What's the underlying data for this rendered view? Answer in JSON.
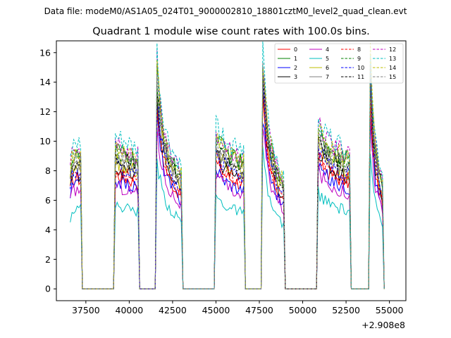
{
  "suptitle": "Data file: modeM0/AS1A05_024T01_9000002810_18801cztM0_level2_quad_clean.evt",
  "chart_data": {
    "type": "line",
    "title": "Quadrant 1 module wise count rates with 100.0s bins.",
    "xlabel": "",
    "ylabel": "",
    "x_offset_label": "+2.908e8",
    "xlim": [
      35800,
      55950
    ],
    "ylim": [
      -0.8,
      16.8
    ],
    "xticks": [
      37500,
      40000,
      42500,
      45000,
      47500,
      50000,
      52500,
      55000
    ],
    "xtick_labels": [
      "37500",
      "40000",
      "42500",
      "45000",
      "47500",
      "50000",
      "52500",
      "55000"
    ],
    "yticks": [
      0,
      2,
      4,
      6,
      8,
      10,
      12,
      14,
      16
    ],
    "ytick_labels": [
      "0",
      "2",
      "4",
      "6",
      "8",
      "10",
      "12",
      "14",
      "16"
    ],
    "bin_seconds": 100,
    "grid": false,
    "legend_position": "top-right",
    "legend_columns": 4,
    "segments": [
      {
        "start": 36600,
        "end": 37200,
        "rise": 0.85,
        "decay": 0.05
      },
      {
        "start": 39200,
        "end": 40500,
        "rise": 1.0,
        "decay": 0.08
      },
      {
        "start": 41600,
        "end": 43000,
        "rise": 1.55,
        "decay": 0.2
      },
      {
        "start": 45000,
        "end": 46600,
        "rise": 1.1,
        "decay": 0.1
      },
      {
        "start": 47700,
        "end": 48900,
        "rise": 1.6,
        "decay": 0.25
      },
      {
        "start": 50900,
        "end": 52700,
        "rise": 1.15,
        "decay": 0.08
      },
      {
        "start": 53900,
        "end": 54600,
        "rise": 1.65,
        "decay": 0.25
      }
    ],
    "series": [
      {
        "name": "0",
        "color": "#ff0000",
        "dash": "solid",
        "level": 7.8
      },
      {
        "name": "1",
        "color": "#008000",
        "dash": "solid",
        "level": 9.4
      },
      {
        "name": "2",
        "color": "#0000ff",
        "dash": "solid",
        "level": 7.4
      },
      {
        "name": "3",
        "color": "#000000",
        "dash": "solid",
        "level": 8.2
      },
      {
        "name": "4",
        "color": "#bf00bf",
        "dash": "solid",
        "level": 7.0
      },
      {
        "name": "5",
        "color": "#00bfbf",
        "dash": "solid",
        "level": 5.7
      },
      {
        "name": "6",
        "color": "#bfbf00",
        "dash": "solid",
        "level": 8.6
      },
      {
        "name": "7",
        "color": "#808080",
        "dash": "solid",
        "level": 8.9
      },
      {
        "name": "8",
        "color": "#ff0000",
        "dash": "dashed",
        "level": 8.0
      },
      {
        "name": "9",
        "color": "#008000",
        "dash": "dashed",
        "level": 9.3
      },
      {
        "name": "10",
        "color": "#0000ff",
        "dash": "dashed",
        "level": 8.4
      },
      {
        "name": "11",
        "color": "#000000",
        "dash": "dashed",
        "level": 9.0
      },
      {
        "name": "12",
        "color": "#bf00bf",
        "dash": "dashed",
        "level": 9.8
      },
      {
        "name": "13",
        "color": "#00bfbf",
        "dash": "dashed",
        "level": 10.2
      },
      {
        "name": "14",
        "color": "#bfbf00",
        "dash": "dashed",
        "level": 9.6
      },
      {
        "name": "15",
        "color": "#808080",
        "dash": "dashed",
        "level": 9.1
      }
    ]
  }
}
